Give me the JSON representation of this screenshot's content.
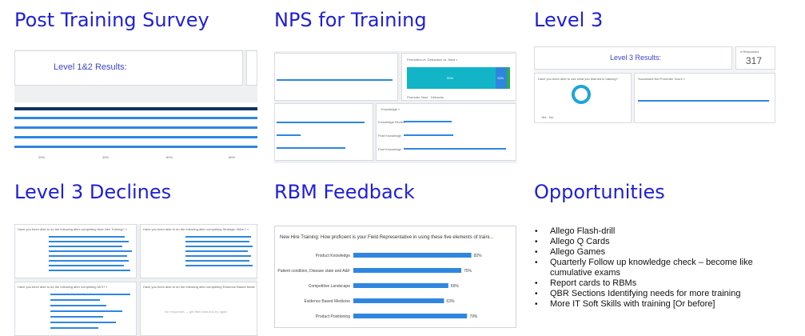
{
  "titles": {
    "post_training": "Post Training Survey",
    "nps": "NPS for Training",
    "level3": "Level 3",
    "level3_declines": "Level 3 Declines",
    "rbm_feedback": "RBM Feedback",
    "opportunities": "Opportunities"
  },
  "post_training": {
    "results_label": "Level 1&2 Results:",
    "axis_ticks": [
      "20%",
      "40%",
      "60%",
      "80%"
    ]
  },
  "nps": {
    "promoters_title": "Promoters vs. Detractors vs. Neut ▿",
    "knowledge_title": "Knowledge ▿",
    "stacked_values": [
      "90%",
      "10%"
    ],
    "legend": [
      "Promoter",
      "Neut",
      "Detractor"
    ],
    "knowledge_rows": [
      "Knowledge Review",
      "Post Knowledge",
      "Post Knowledge"
    ]
  },
  "level3": {
    "results_label": "Level 3 Results:",
    "responses_label": "# Responses",
    "responses_value": "317",
    "donut_question": "Have you been able to use what you learned in training?",
    "right_card_title": "Successful Net Promoter Score ▿",
    "donut_legend": [
      "Yes",
      "No"
    ]
  },
  "level3_declines": {
    "panel_titles": [
      "Have you been able to do the following after completing New Hire Training? ▿",
      "Have you been able to do the following after completing Strategic Seller? ▿",
      "Have you been able to do the following after completing MCI? ▿",
      "Have you been able to do the following after completing Evidence Based Medicine ▿"
    ],
    "empty_note": "No responses — get filter data and try again"
  },
  "rbm": {
    "title": "New Hire Training: How proficient is your Field Representative in using these five elements of traini...",
    "rows": [
      {
        "label": "Product Knowledge",
        "value": "82%",
        "pct": 82
      },
      {
        "label": "Patient condition, Disease state and A&F",
        "value": "75%",
        "pct": 75
      },
      {
        "label": "Competitive Landscape",
        "value": "66%",
        "pct": 66
      },
      {
        "label": "Evidence Based Medicine",
        "value": "63%",
        "pct": 63
      },
      {
        "label": "Product Positioning",
        "value": "79%",
        "pct": 79
      }
    ]
  },
  "opportunities": {
    "items": [
      "Allego Flash-drill",
      "Allego Q Cards",
      "Allego Games",
      "Quarterly Follow up knowledge check – become like cumulative exams",
      "Report cards to RBMs",
      "QBR Sections Identifying needs for more training",
      "More IT Soft Skills with training [Or before]"
    ]
  },
  "colors": {
    "title_blue": "#1f1fd6",
    "bar_blue": "#2f86e0",
    "teal": "#12b5c7",
    "green": "#2fae4f",
    "navy": "#0d3563"
  }
}
